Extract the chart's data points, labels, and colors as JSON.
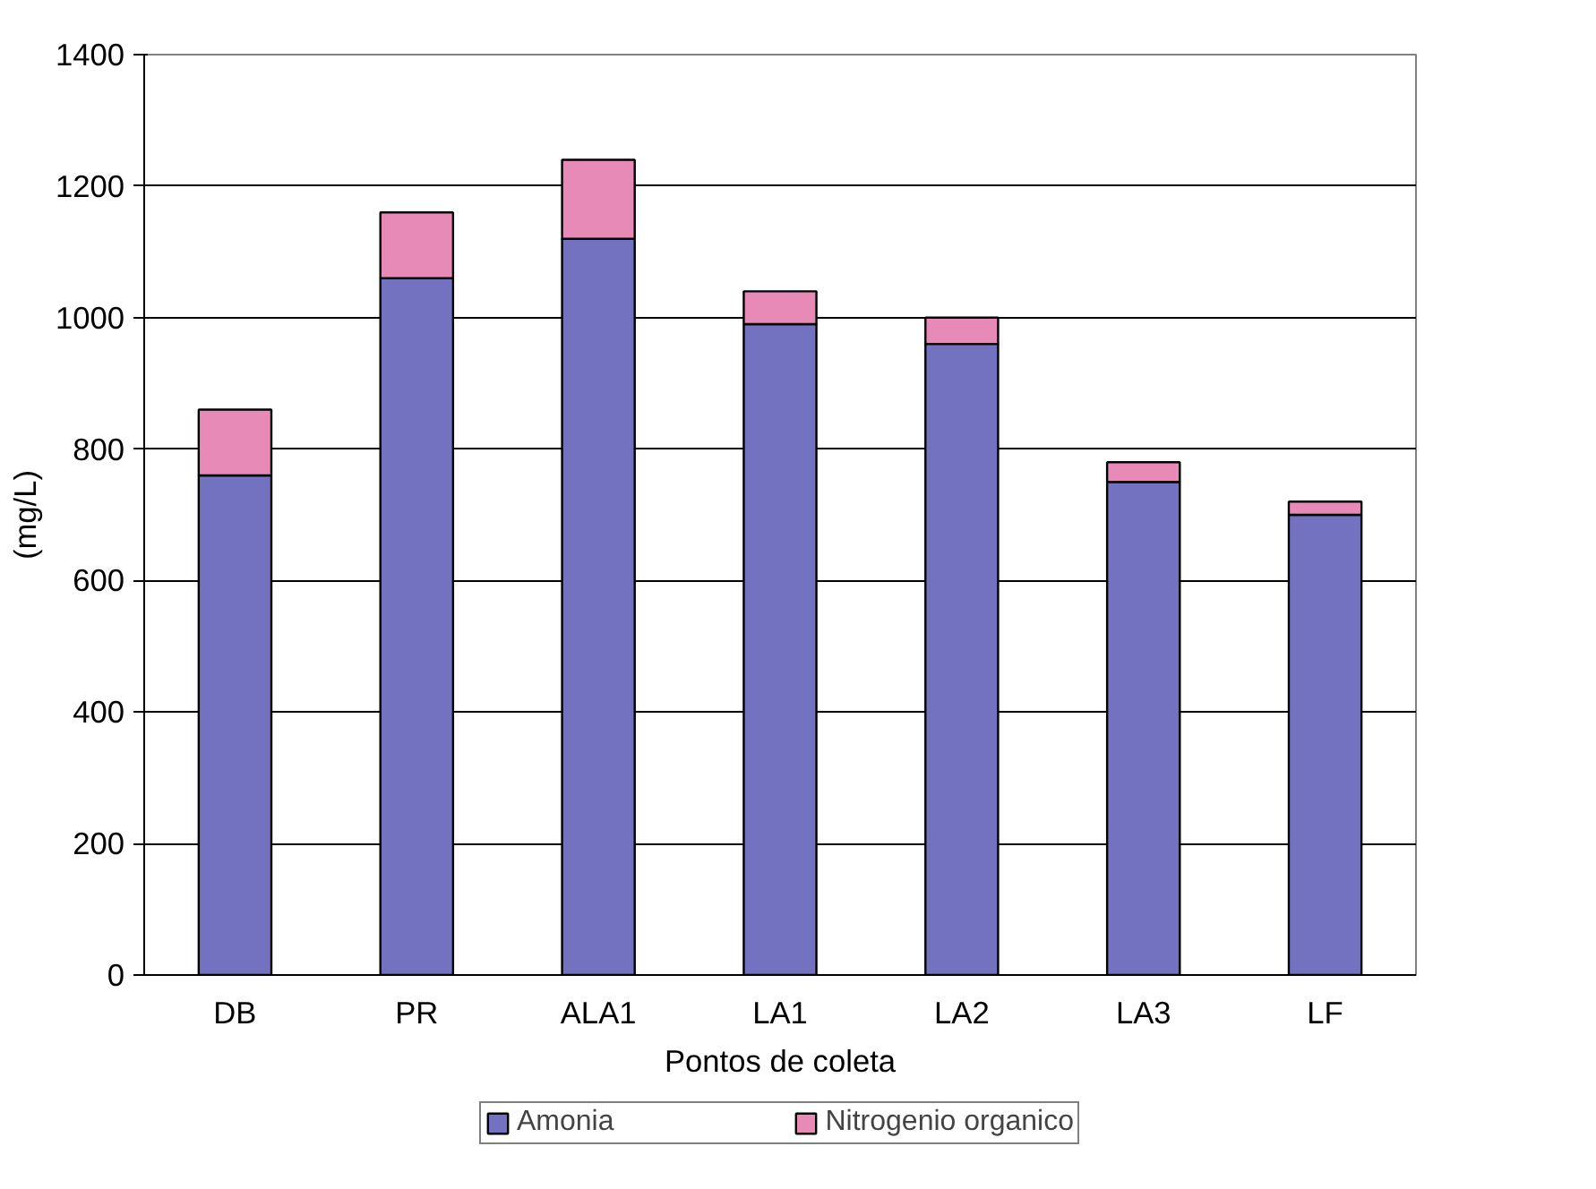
{
  "chart_data": {
    "type": "bar",
    "stacked": true,
    "xlabel": "Pontos de coleta",
    "ylabel": "(mg/L)",
    "categories": [
      "DB",
      "PR",
      "ALA1",
      "LA1",
      "LA2",
      "LA3",
      "LF"
    ],
    "series": [
      {
        "name": "Amonia",
        "color": "#7272c0",
        "values": [
          760,
          1060,
          1120,
          990,
          960,
          750,
          700
        ]
      },
      {
        "name": "Nitrogenio organico",
        "color": "#e88ab8",
        "values": [
          100,
          100,
          120,
          50,
          40,
          30,
          20
        ]
      }
    ],
    "ylim": [
      0,
      1400
    ],
    "yticks": [
      0,
      200,
      400,
      600,
      800,
      1000,
      1200,
      1400
    ],
    "grid": "y",
    "legend": "bottom"
  }
}
